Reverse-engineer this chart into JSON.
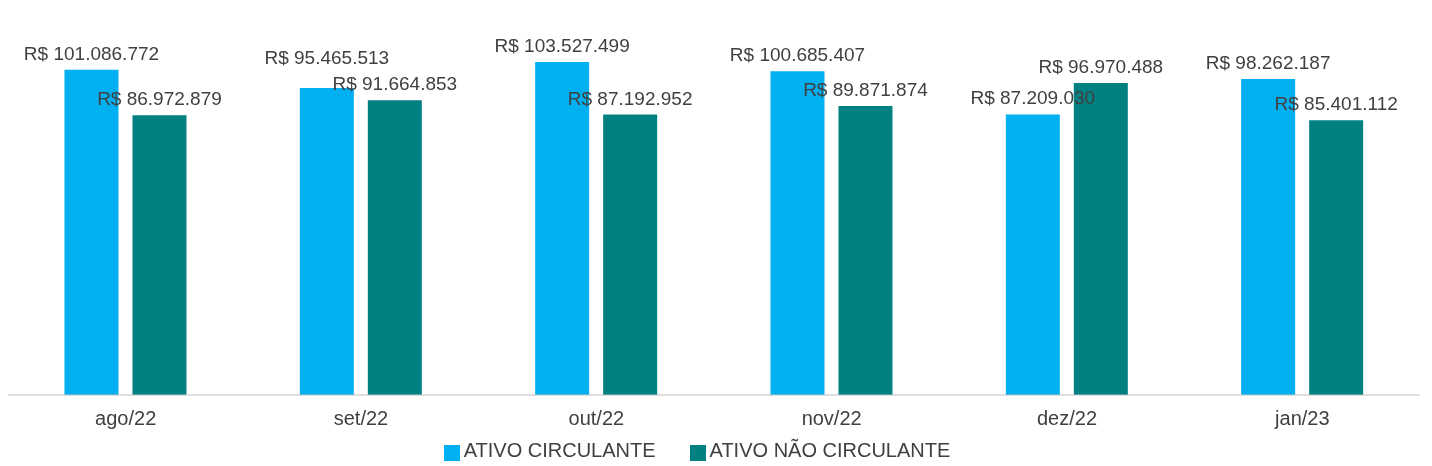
{
  "chart_data": {
    "type": "bar",
    "categories": [
      "ago/22",
      "set/22",
      "out/22",
      "nov/22",
      "dez/22",
      "jan/23"
    ],
    "series": [
      {
        "name": "ATIVO CIRCULANTE",
        "color": "#00b0f0",
        "values": [
          101086772,
          95465513,
          103527499,
          100685407,
          87209030,
          98262187
        ],
        "value_labels": [
          "R$ 101.086.772",
          "R$ 95.465.513",
          "R$ 103.527.499",
          "R$ 100.685.407",
          "R$ 87.209.030",
          "R$ 98.262.187"
        ]
      },
      {
        "name": "ATIVO NÃO CIRCULANTE",
        "color": "#008080",
        "values": [
          86972879,
          91664853,
          87192952,
          89871874,
          96970488,
          85401112
        ],
        "value_labels": [
          "R$ 86.972.879",
          "R$ 91.664.853",
          "R$ 87.192.952",
          "R$ 89.871.874",
          "R$ 96.970.488",
          "R$ 85.401.112"
        ]
      }
    ],
    "legend": "bottom",
    "grid": false
  }
}
